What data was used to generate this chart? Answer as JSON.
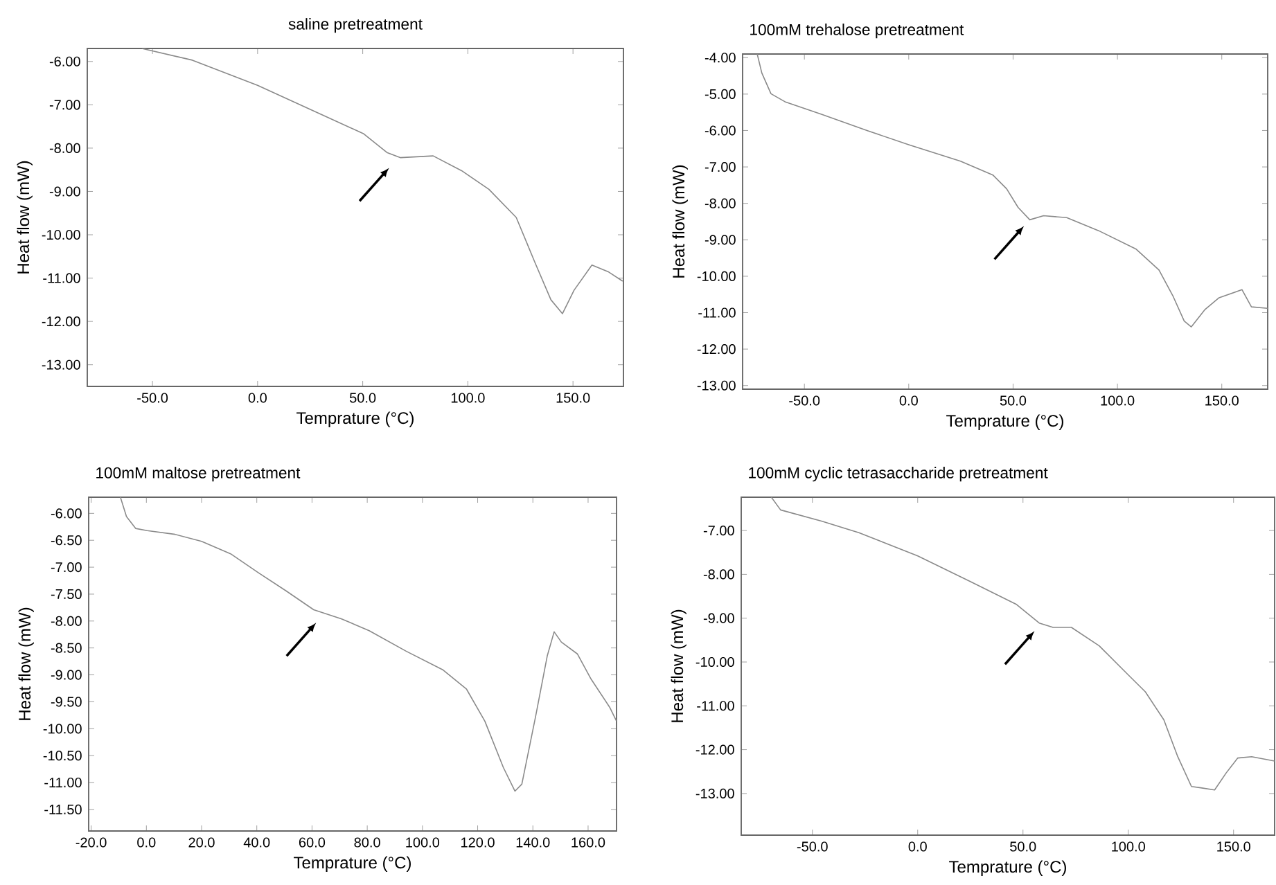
{
  "chart_data": [
    {
      "type": "line",
      "title": "saline pretreatment",
      "xlabel": "Temprature (°C)",
      "ylabel": "Heat flow (mW)",
      "color": "#8a8a8a",
      "x": [
        -55,
        -31,
        0,
        31,
        50.5,
        61.5,
        68,
        83.5,
        97,
        110,
        123,
        132,
        139.5,
        145,
        150.5,
        159,
        167,
        173.6
      ],
      "values": [
        -5.7,
        -5.97,
        -6.55,
        -7.24,
        -7.67,
        -8.1,
        -8.22,
        -8.18,
        -8.52,
        -8.95,
        -9.6,
        -10.65,
        -11.5,
        -11.82,
        -11.28,
        -10.7,
        -10.86,
        -11.07
      ],
      "xlim": [
        -81,
        174
      ],
      "ylim": [
        -13.5,
        -5.7
      ],
      "xticks": [
        {
          "value": -50,
          "label": "-50.0"
        },
        {
          "value": 0,
          "label": "0.0"
        },
        {
          "value": 50,
          "label": "50.0"
        },
        {
          "value": 100,
          "label": "100.0"
        },
        {
          "value": 150,
          "label": "150.0"
        }
      ],
      "yticks": [
        {
          "value": -6,
          "label": "-6.00"
        },
        {
          "value": -7,
          "label": "-7.00"
        },
        {
          "value": -8,
          "label": "-8.00"
        },
        {
          "value": -9,
          "label": "-9.00"
        },
        {
          "value": -10,
          "label": "-10.00"
        },
        {
          "value": -11,
          "label": "-11.00"
        },
        {
          "value": -12,
          "label": "-12.00"
        },
        {
          "value": -13,
          "label": "-13.00"
        }
      ]
    },
    {
      "type": "line",
      "title": "100mM trehalose pretreatment",
      "xlabel": "Temprature (°C)",
      "ylabel": "Heat flow (mW)",
      "color": "#8a8a8a",
      "x": [
        -72.6,
        -70.4,
        -66,
        -59.3,
        -41.6,
        -19.5,
        0,
        24.8,
        40.3,
        46.9,
        52.4,
        58,
        64.6,
        75.7,
        91,
        108.8,
        119.9,
        126.5,
        132,
        135.4,
        142,
        148.7,
        159.7,
        164.2,
        172
      ],
      "values": [
        -3.9,
        -4.42,
        -4.99,
        -5.21,
        -5.56,
        -6.01,
        -6.39,
        -6.84,
        -7.22,
        -7.6,
        -8.11,
        -8.45,
        -8.34,
        -8.39,
        -8.75,
        -9.25,
        -9.83,
        -10.53,
        -11.23,
        -11.39,
        -10.91,
        -10.59,
        -10.37,
        -10.84,
        -10.88
      ],
      "xlim": [
        -79.6,
        172
      ],
      "ylim": [
        -13.1,
        -3.9
      ],
      "xticks": [
        {
          "value": -50,
          "label": "-50.0"
        },
        {
          "value": 0,
          "label": "0.0"
        },
        {
          "value": 50,
          "label": "50.0"
        },
        {
          "value": 100,
          "label": "100.0"
        },
        {
          "value": 150,
          "label": "150.0"
        }
      ],
      "yticks": [
        {
          "value": -4,
          "label": "-4.00"
        },
        {
          "value": -5,
          "label": "-5.00"
        },
        {
          "value": -6,
          "label": "-6.00"
        },
        {
          "value": -7,
          "label": "-7.00"
        },
        {
          "value": -8,
          "label": "-8.00"
        },
        {
          "value": -9,
          "label": "-9.00"
        },
        {
          "value": -10,
          "label": "-10.00"
        },
        {
          "value": -11,
          "label": "-11.00"
        },
        {
          "value": -12,
          "label": "-12.00"
        },
        {
          "value": -13,
          "label": "-13.00"
        }
      ]
    },
    {
      "type": "line",
      "title": "100mM maltose pretreatment",
      "xlabel": "Temprature (°C)",
      "ylabel": "Heat flow (mW)",
      "color": "#8a8a8a",
      "x": [
        -9.4,
        -7.2,
        -3.9,
        0.3,
        10.4,
        20,
        30.5,
        40.5,
        50.6,
        60.6,
        70.7,
        80.7,
        94.1,
        107.5,
        115.9,
        122.6,
        129.3,
        133.5,
        136,
        141,
        145.2,
        147.7,
        150.3,
        156.1,
        161.1,
        167.8,
        170.3
      ],
      "values": [
        -5.7,
        -6.06,
        -6.28,
        -6.32,
        -6.39,
        -6.52,
        -6.75,
        -7.1,
        -7.44,
        -7.79,
        -7.96,
        -8.18,
        -8.56,
        -8.91,
        -9.26,
        -9.86,
        -10.72,
        -11.16,
        -11.03,
        -9.77,
        -8.65,
        -8.2,
        -8.39,
        -8.61,
        -9.08,
        -9.6,
        -9.86
      ],
      "xlim": [
        -20.9,
        170.3
      ],
      "ylim": [
        -11.9,
        -5.7
      ],
      "xticks": [
        {
          "value": -20,
          "label": "-20.0"
        },
        {
          "value": 0,
          "label": "0.0"
        },
        {
          "value": 20,
          "label": "20.0"
        },
        {
          "value": 40,
          "label": "40.0"
        },
        {
          "value": 60,
          "label": "60.0"
        },
        {
          "value": 80,
          "label": "80.0"
        },
        {
          "value": 100,
          "label": "100.0"
        },
        {
          "value": 120,
          "label": "120.0"
        },
        {
          "value": 140,
          "label": "140.0"
        },
        {
          "value": 160,
          "label": "160.0"
        }
      ],
      "yticks": [
        {
          "value": -6,
          "label": "-6.00"
        },
        {
          "value": -6.5,
          "label": "-6.50"
        },
        {
          "value": -7,
          "label": "-7.00"
        },
        {
          "value": -7.5,
          "label": "-7.50"
        },
        {
          "value": -8,
          "label": "-8.00"
        },
        {
          "value": -8.5,
          "label": "-8.50"
        },
        {
          "value": -9,
          "label": "-9.00"
        },
        {
          "value": -9.5,
          "label": "-9.50"
        },
        {
          "value": -10,
          "label": "-10.00"
        },
        {
          "value": -10.5,
          "label": "-10.50"
        },
        {
          "value": -11,
          "label": "-11.00"
        },
        {
          "value": -11.5,
          "label": "-11.50"
        }
      ]
    },
    {
      "type": "line",
      "title": "100mM cyclic tetrasaccharide pretreatment",
      "xlabel": "Temprature (°C)",
      "ylabel": "Heat flow (mW)",
      "color": "#8a8a8a",
      "x": [
        -69.5,
        -65.1,
        -45.4,
        -27.9,
        0,
        24.8,
        46.7,
        57.7,
        64.3,
        73,
        86.2,
        99.3,
        108.1,
        116.9,
        123.5,
        130,
        134.4,
        141,
        146.5,
        152,
        158.6,
        169.5
      ],
      "values": [
        -6.24,
        -6.53,
        -6.79,
        -7.05,
        -7.58,
        -8.16,
        -8.68,
        -9.11,
        -9.21,
        -9.21,
        -9.63,
        -10.26,
        -10.68,
        -11.32,
        -12.16,
        -12.84,
        -12.87,
        -12.92,
        -12.53,
        -12.19,
        -12.16,
        -12.26
      ],
      "xlim": [
        -83.8,
        169.5
      ],
      "ylim": [
        -13.95,
        -6.24
      ],
      "xticks": [
        {
          "value": -50,
          "label": "-50.0"
        },
        {
          "value": 0,
          "label": "0.0"
        },
        {
          "value": 50,
          "label": "50.0"
        },
        {
          "value": 100,
          "label": "100.0"
        },
        {
          "value": 150,
          "label": "150.0"
        }
      ],
      "yticks": [
        {
          "value": -7,
          "label": "-7.00"
        },
        {
          "value": -8,
          "label": "-8.00"
        },
        {
          "value": -9,
          "label": "-9.00"
        },
        {
          "value": -10,
          "label": "-10.00"
        },
        {
          "value": -11,
          "label": "-11.00"
        },
        {
          "value": -12,
          "label": "-12.00"
        },
        {
          "value": -13,
          "label": "-13.00"
        }
      ]
    }
  ]
}
